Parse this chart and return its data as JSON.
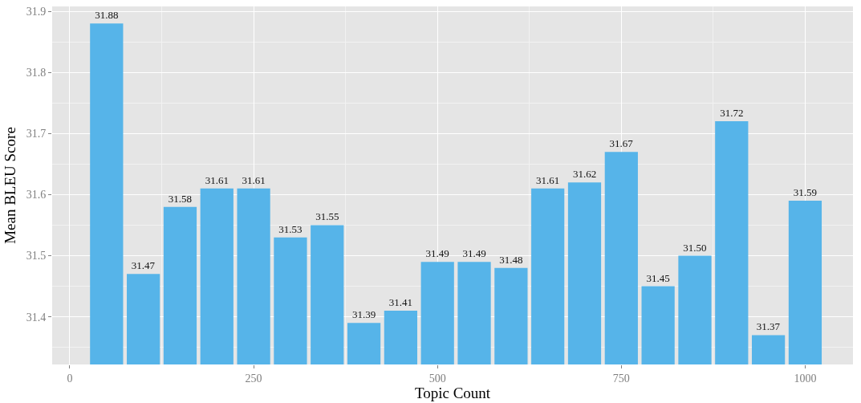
{
  "chart_data": {
    "type": "bar",
    "xlabel": "Topic Count",
    "ylabel": "Mean BLEU Score",
    "x": [
      50,
      100,
      150,
      200,
      250,
      300,
      350,
      400,
      450,
      500,
      550,
      600,
      650,
      700,
      750,
      800,
      850,
      900,
      950,
      1000
    ],
    "values": [
      31.88,
      31.47,
      31.58,
      31.61,
      31.61,
      31.53,
      31.55,
      31.39,
      31.41,
      31.49,
      31.49,
      31.48,
      31.61,
      31.62,
      31.67,
      31.45,
      31.5,
      31.72,
      31.37,
      31.59
    ],
    "color": "#56b4e9",
    "value_labels": [
      "31.88",
      "31.47",
      "31.58",
      "31.61",
      "31.61",
      "31.53",
      "31.55",
      "31.39",
      "31.41",
      "31.49",
      "31.49",
      "31.48",
      "31.61",
      "31.62",
      "31.67",
      "31.45",
      "31.50",
      "31.72",
      "31.37",
      "31.59"
    ],
    "xlim": [
      -24,
      1065
    ],
    "xticks": [
      0,
      250,
      500,
      750,
      1000
    ],
    "ylim": [
      31.322,
      31.908
    ],
    "yticks": [
      31.4,
      31.5,
      31.6,
      31.7,
      31.8,
      31.9
    ],
    "grid": true
  }
}
